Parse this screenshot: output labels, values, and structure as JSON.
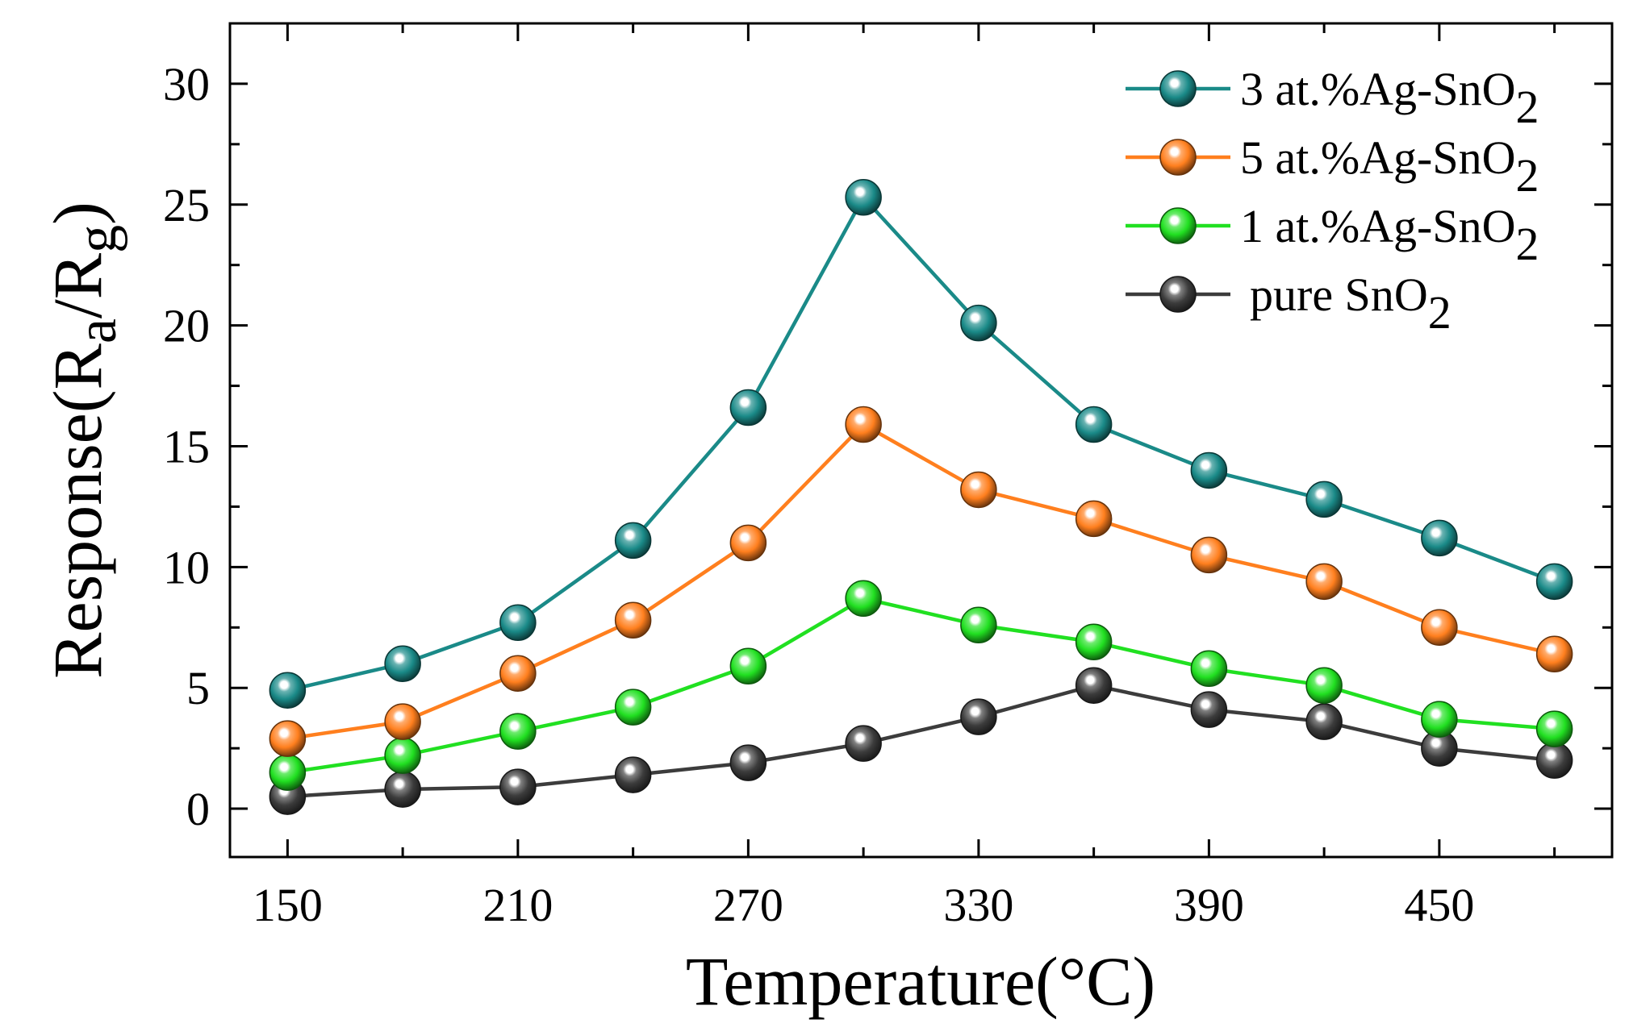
{
  "chart_data": {
    "type": "line",
    "xlabel": "Temperature(°C)",
    "ylabel_main": "Response(R",
    "ylabel_sub_a": "a",
    "ylabel_slash": "/R",
    "ylabel_sub_g": "g",
    "ylabel_close": ")",
    "xlim": [
      135,
      495
    ],
    "ylim": [
      -2,
      32.5
    ],
    "xticks": [
      150,
      210,
      270,
      330,
      390,
      450
    ],
    "xtick_labels": [
      "150",
      "210",
      "270",
      "330",
      "390",
      "450"
    ],
    "yticks": [
      0,
      5,
      10,
      15,
      20,
      25,
      30
    ],
    "ytick_labels": [
      "0",
      "5",
      "10",
      "15",
      "20",
      "25",
      "30"
    ],
    "x": [
      150,
      180,
      210,
      240,
      270,
      300,
      330,
      360,
      390,
      420,
      450,
      480
    ],
    "legend_position": "top-right",
    "series": [
      {
        "name": "3 at.%Ag-SnO2",
        "label_main": "3 at.%Ag-SnO",
        "label_sub": "2",
        "color": "#1a8a88",
        "values": [
          4.9,
          6.0,
          7.7,
          11.1,
          16.6,
          25.3,
          20.1,
          15.9,
          14.0,
          12.8,
          11.2,
          9.4
        ]
      },
      {
        "name": "5 at.%Ag-SnO2",
        "label_main": "5 at.%Ag-SnO",
        "label_sub": "2",
        "color": "#ff7f1e",
        "values": [
          2.9,
          3.6,
          5.6,
          7.8,
          11.0,
          15.9,
          13.2,
          12.0,
          10.5,
          9.4,
          7.5,
          6.4
        ]
      },
      {
        "name": "1 at.%Ag-SnO2",
        "label_main": "1 at.%Ag-SnO",
        "label_sub": "2",
        "color": "#21e021",
        "values": [
          1.5,
          2.2,
          3.2,
          4.2,
          5.9,
          8.7,
          7.6,
          6.9,
          5.8,
          5.1,
          3.7,
          3.3
        ]
      },
      {
        "name": "pure SnO2",
        "label_main": "pure SnO",
        "label_sub": "2",
        "color": "#3c3c3c",
        "values": [
          0.5,
          0.8,
          0.9,
          1.4,
          1.9,
          2.7,
          3.8,
          5.1,
          4.1,
          3.6,
          2.5,
          2.0
        ]
      }
    ]
  }
}
